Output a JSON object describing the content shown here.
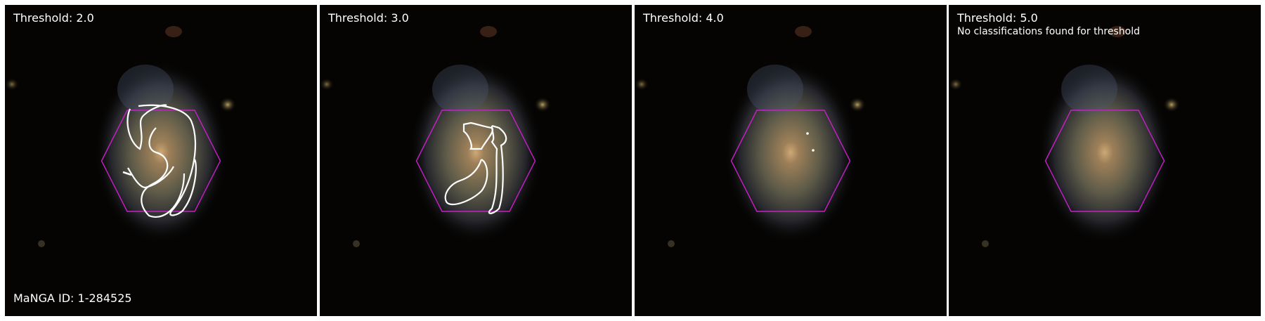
{
  "panels": [
    {
      "title": "Threshold: 2.0",
      "note": "",
      "contours": true
    },
    {
      "title": "Threshold: 3.0",
      "note": "",
      "contours": true
    },
    {
      "title": "Threshold: 4.0",
      "note": "",
      "contours": true
    },
    {
      "title": "Threshold: 5.0",
      "note": "No classifications found for threshold",
      "contours": false
    }
  ],
  "manga_id_label": "MaNGA ID: 1-284525",
  "colors": {
    "background": "#050403",
    "hexagon": "#c81ec8",
    "contour": "#ffffff",
    "text": "#ffffff"
  }
}
